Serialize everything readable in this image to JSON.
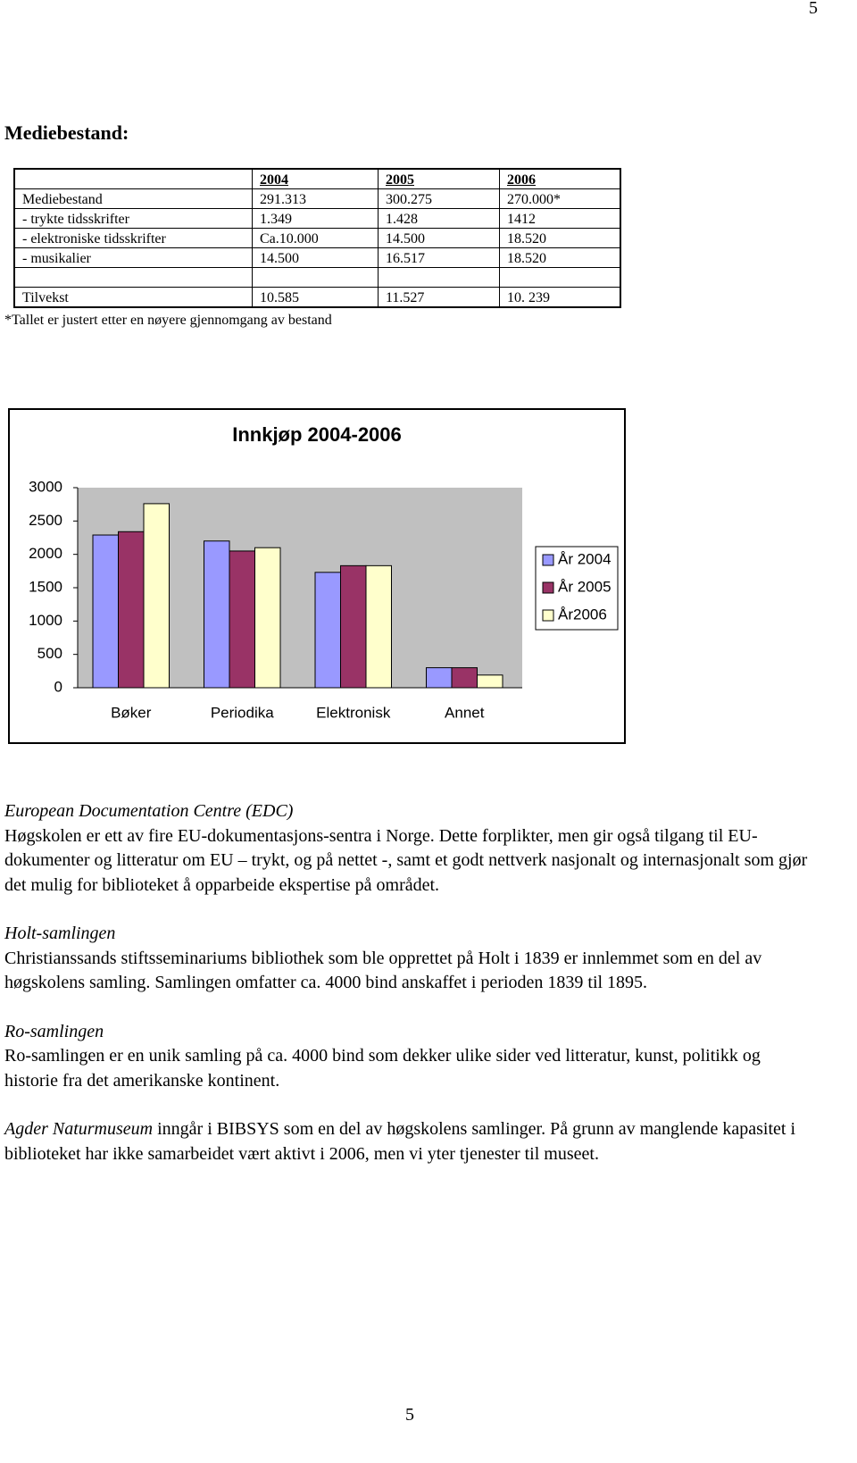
{
  "page_number_top": "5",
  "heading": "Mediebestand:",
  "table": {
    "columns": [
      "2004",
      "2005",
      "2006"
    ],
    "rows": [
      {
        "label": "Mediebestand",
        "cells": [
          "291.313",
          "300.275",
          "270.000*"
        ]
      },
      {
        "label": "- trykte tidsskrifter",
        "cells": [
          "1.349",
          "1.428",
          "1412"
        ]
      },
      {
        "label": "- elektroniske tidsskrifter",
        "cells": [
          "Ca.10.000",
          "14.500",
          "18.520"
        ]
      },
      {
        "label": "- musikalier",
        "cells": [
          "14.500",
          "16.517",
          "18.520"
        ]
      },
      {
        "label": "Tilvekst",
        "cells": [
          "10.585",
          "11.527",
          "10. 239"
        ]
      }
    ],
    "footnote": "*Tallet er justert etter en nøyere gjennomgang av bestand"
  },
  "chart_data": {
    "type": "bar",
    "title": "Innkjøp 2004-2006",
    "categories": [
      "Bøker",
      "Periodika",
      "Elektronisk",
      "Annet"
    ],
    "series": [
      {
        "name": "År 2004",
        "color": "#9999ff",
        "values": [
          2290,
          2200,
          1730,
          300
        ]
      },
      {
        "name": "År 2005",
        "color": "#993366",
        "values": [
          2340,
          2050,
          1830,
          300
        ]
      },
      {
        "name": "År2006",
        "color": "#ffffcc",
        "values": [
          2760,
          2100,
          1830,
          190
        ]
      }
    ],
    "ylim": [
      0,
      3000
    ],
    "yticks": [
      0,
      500,
      1000,
      1500,
      2000,
      2500,
      3000
    ],
    "grid": false,
    "legend": "right"
  },
  "sections": [
    {
      "title": "European Documentation Centre (EDC)",
      "text": "Høgskolen er ett av fire EU-dokumentasjons-sentra i Norge. Dette forplikter, men gir også tilgang til EU-dokumenter og litteratur om EU – trykt, og på nettet -, samt et godt nettverk nasjonalt og internasjonalt som gjør det mulig for biblioteket å opparbeide ekspertise på området."
    },
    {
      "title": "Holt-samlingen",
      "text": "Christianssands stiftsseminariums bibliothek som ble opprettet på Holt i 1839 er innlemmet som en del av høgskolens samling. Samlingen omfatter ca. 4000 bind anskaffet i perioden 1839 til 1895."
    },
    {
      "title": "Ro-samlingen",
      "text": "Ro-samlingen er en unik samling på ca. 4000 bind som dekker ulike sider ved litteratur, kunst, politikk og historie fra det amerikanske kontinent."
    },
    {
      "title": "Agder Naturmuseum",
      "text": "inngår i BIBSYS som en del av høgskolens samlinger. På grunn av manglende kapasitet i biblioteket har ikke samarbeidet vært aktivt i 2006, men vi yter tjenester til museet."
    }
  ],
  "page_number_bottom": "5"
}
